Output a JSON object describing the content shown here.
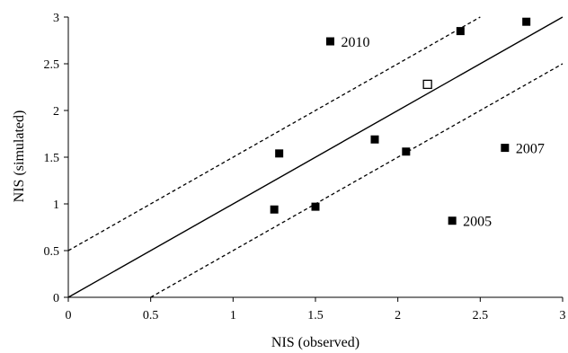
{
  "chart_data": {
    "type": "scatter",
    "xlabel": "NIS (observed)",
    "ylabel": "NIS (simulated)",
    "xlim": [
      0,
      3
    ],
    "ylim": [
      0,
      3
    ],
    "xticks": [
      "0",
      "0.5",
      "1",
      "1.5",
      "2",
      "2.5",
      "3"
    ],
    "yticks": [
      "0",
      "0.5",
      "1",
      "1.5",
      "2",
      "2.5",
      "3"
    ],
    "grid": false,
    "points": [
      {
        "x": 1.59,
        "y": 2.74,
        "marker": "filled-square",
        "label": "2010"
      },
      {
        "x": 2.38,
        "y": 2.85,
        "marker": "filled-square"
      },
      {
        "x": 2.78,
        "y": 2.95,
        "marker": "filled-square"
      },
      {
        "x": 2.18,
        "y": 2.28,
        "marker": "open-square"
      },
      {
        "x": 1.28,
        "y": 1.54,
        "marker": "filled-square"
      },
      {
        "x": 1.86,
        "y": 1.69,
        "marker": "filled-square"
      },
      {
        "x": 2.05,
        "y": 1.56,
        "marker": "filled-square"
      },
      {
        "x": 2.65,
        "y": 1.6,
        "marker": "filled-square",
        "label": "2007"
      },
      {
        "x": 1.25,
        "y": 0.94,
        "marker": "filled-square"
      },
      {
        "x": 1.5,
        "y": 0.97,
        "marker": "filled-square"
      },
      {
        "x": 2.33,
        "y": 0.82,
        "marker": "filled-square",
        "label": "2005"
      }
    ],
    "lines": [
      {
        "style": "solid",
        "x": [
          0,
          3
        ],
        "y": [
          0,
          3
        ]
      },
      {
        "style": "dashed",
        "x": [
          0,
          2.5
        ],
        "y": [
          0.5,
          3
        ]
      },
      {
        "style": "dashed",
        "x": [
          0.5,
          3
        ],
        "y": [
          0,
          2.5
        ]
      }
    ]
  }
}
